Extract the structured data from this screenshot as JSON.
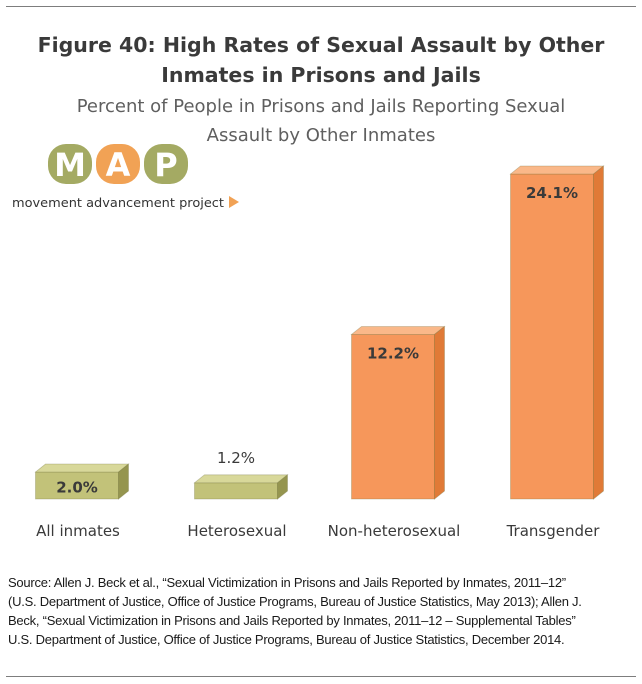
{
  "title_line1": "Figure 40: High Rates of Sexual Assault by Other",
  "title_line2": "Inmates in Prisons and Jails",
  "subtitle_line1": "Percent of People in Prisons and Jails Reporting Sexual",
  "subtitle_line2": "Assault by Other Inmates",
  "logo": {
    "letters": [
      "M",
      "A",
      "P"
    ],
    "tagline": "movement advancement project",
    "colors": {
      "green": "#a4aa63",
      "orange": "#f1a255"
    }
  },
  "chart_data": {
    "type": "bar",
    "title": "Figure 40: High Rates of Sexual Assault by Other Inmates in Prisons and Jails",
    "subtitle": "Percent of People in Prisons and Jails Reporting Sexual Assault by Other Inmates",
    "categories": [
      "All inmates",
      "Heterosexual",
      "Non-heterosexual",
      "Transgender"
    ],
    "values": [
      2.0,
      1.2,
      12.2,
      24.1
    ],
    "value_labels": [
      "2.0%",
      "1.2%",
      "12.2%",
      "24.1%"
    ],
    "unit": "%",
    "ylim": [
      0,
      25
    ],
    "grid": false,
    "colors": [
      "#c2c279",
      "#c2c279",
      "#f6975b",
      "#f6975b"
    ]
  },
  "source": {
    "line1": "Source: Allen J. Beck et al., “Sexual Victimization in Prisons and Jails Reported by Inmates, 2011–12”",
    "line2": "(U.S. Department of Justice, Office of Justice Programs, Bureau of Justice Statistics, May 2013); Allen J.",
    "line3": "Beck, “Sexual Victimization in Prisons and Jails Reported by Inmates, 2011–12 – Supplemental Tables”",
    "line4": "U.S. Department of Justice, Office of Justice Programs, Bureau of Justice Statistics, December 2014."
  }
}
